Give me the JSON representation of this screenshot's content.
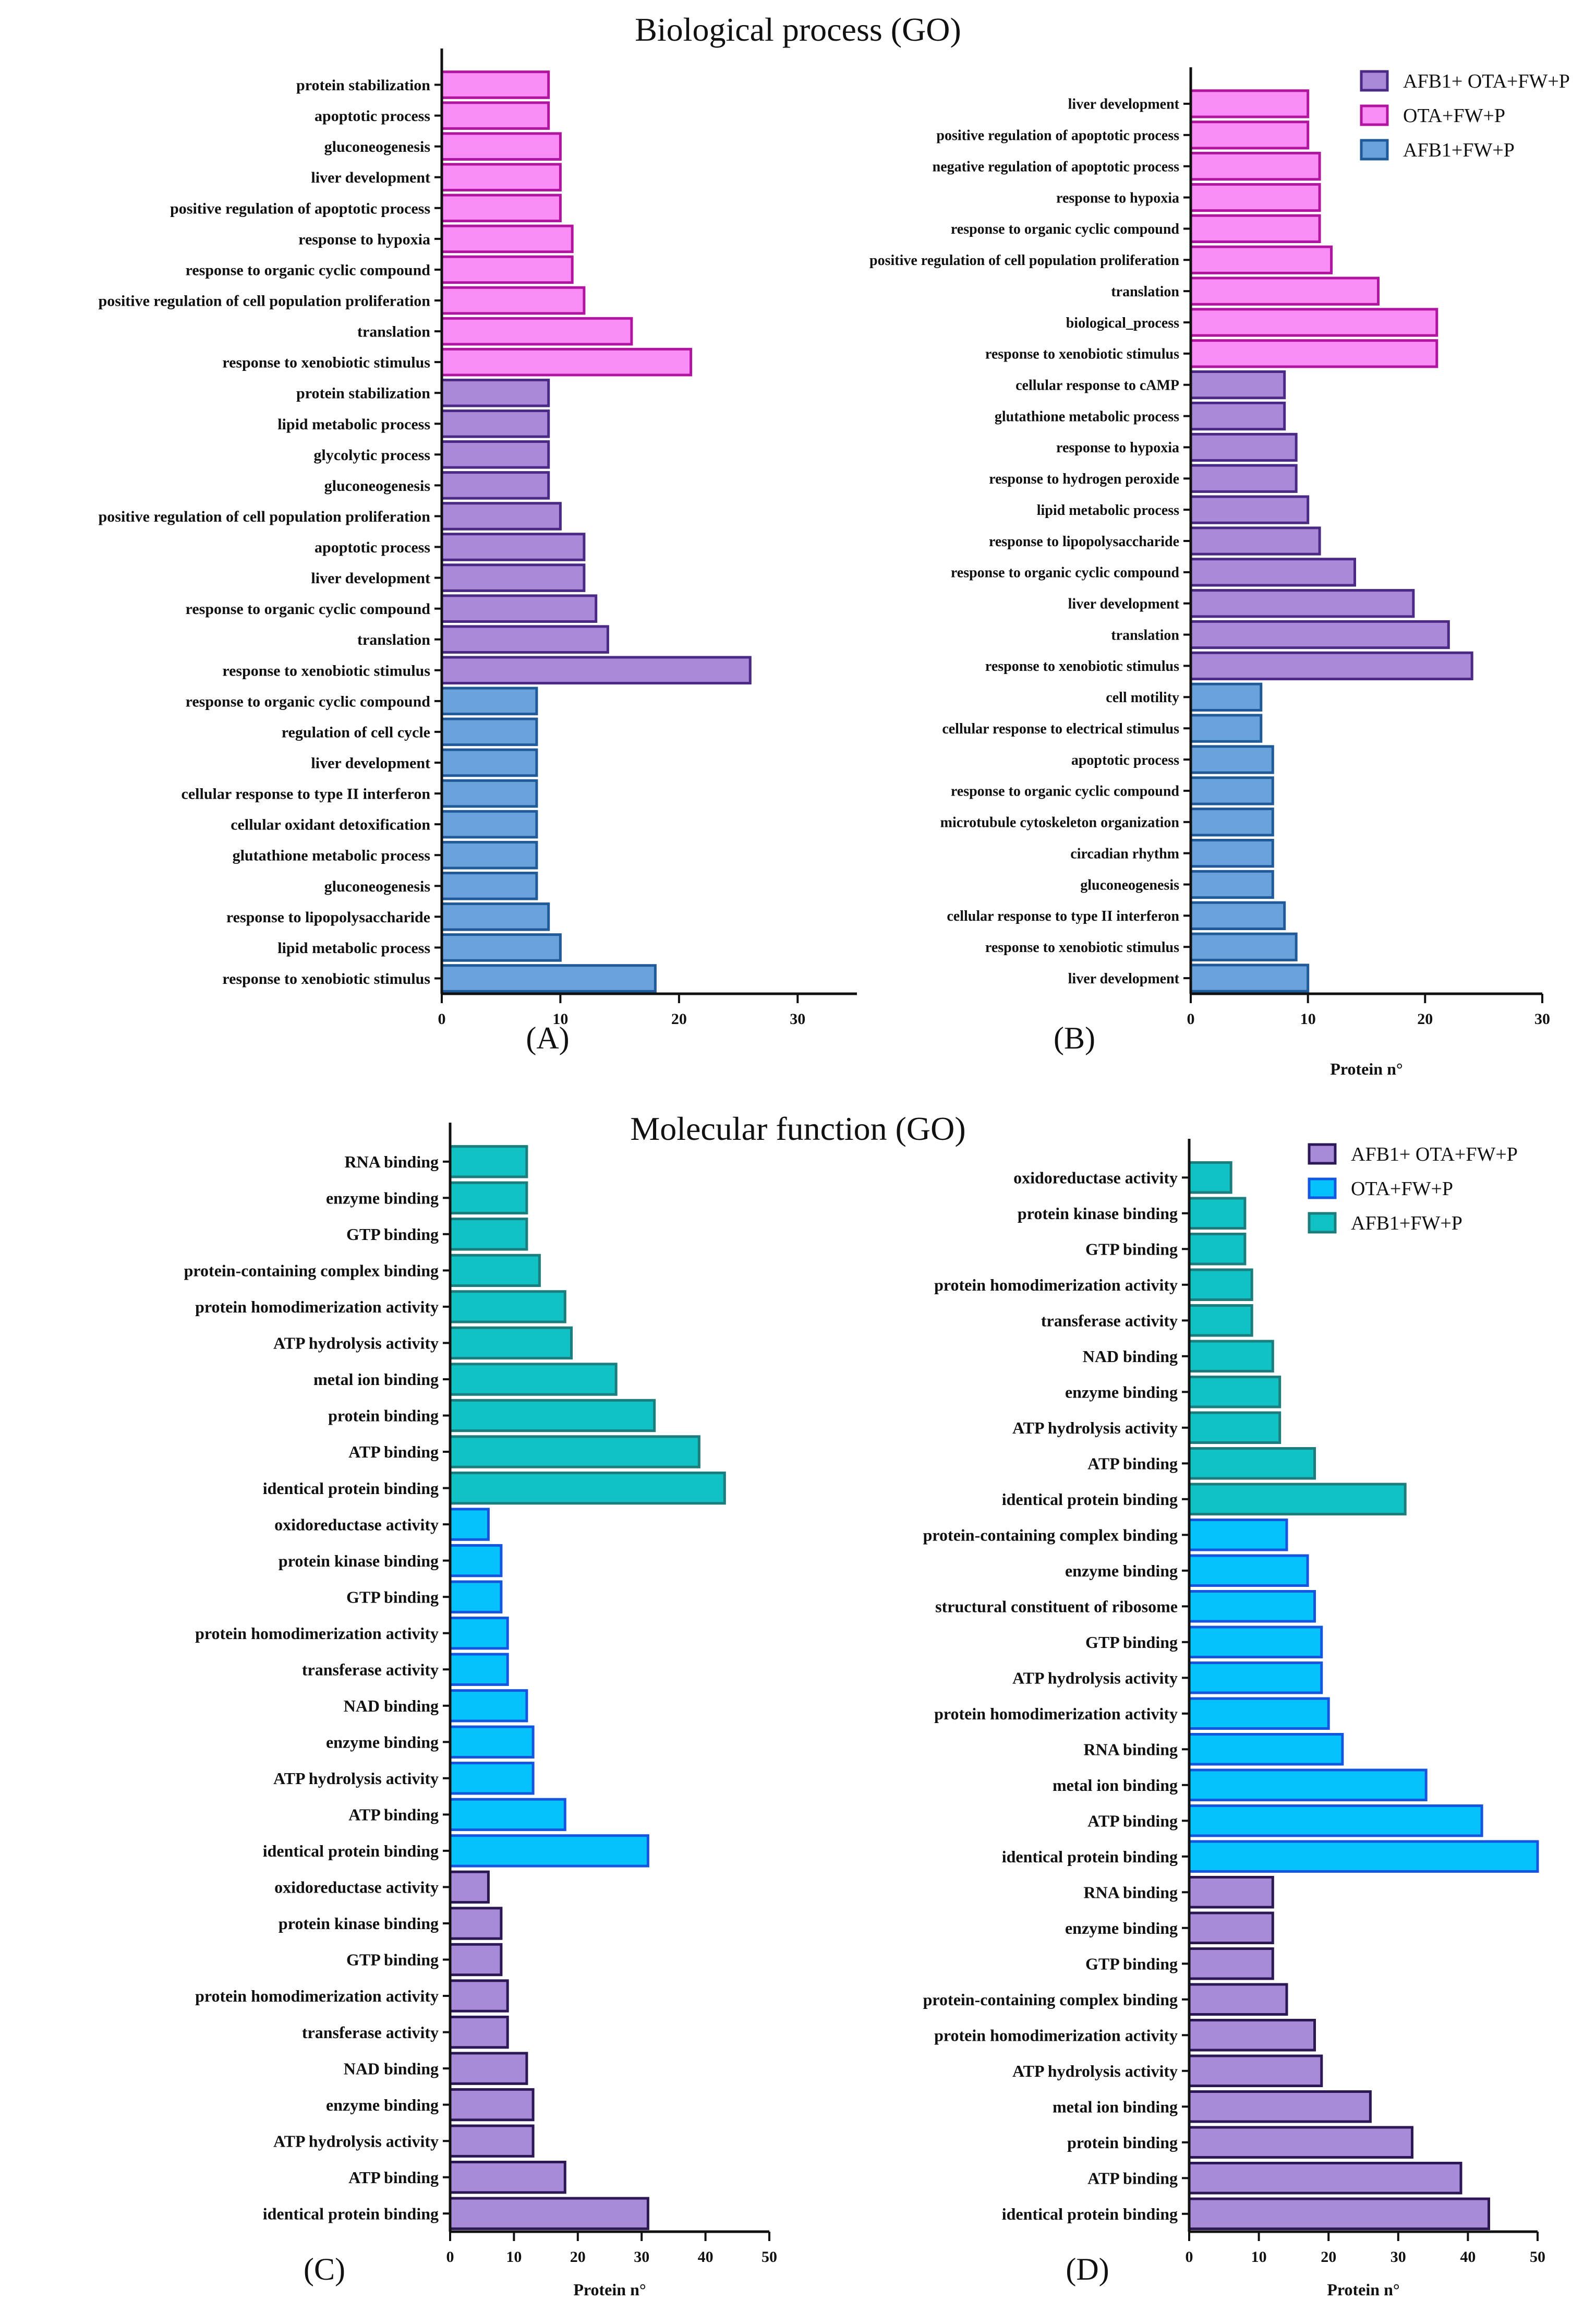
{
  "section_titles": {
    "top": "Biological process (GO)",
    "bottom": "Molecular function (GO)"
  },
  "colors": {
    "purple_fill": "#a98ad9",
    "purple_edge": "#4b2a86",
    "pink_fill": "#fa8cf5",
    "pink_edge": "#b1149e",
    "blue_fill": "#6aa2dc",
    "blue_edge": "#215a99",
    "teal_fill": "#10c2c4",
    "teal_edge": "#1b7d7d",
    "cyan_fill": "#05c3fa",
    "cyan_edge": "#1456e0",
    "violet_fill": "#a88bd8",
    "violet_edge": "#2c1855"
  },
  "chart_data": [
    {
      "id": "A",
      "type": "bar",
      "orientation": "horizontal",
      "panel_label": "(A)",
      "xlabel": "",
      "xlim": [
        0,
        35
      ],
      "xticks": [
        0,
        10,
        20,
        30
      ],
      "groups": [
        {
          "name": "OTA+FW+P",
          "fill": "#fa8cf5",
          "edge": "#b1149e",
          "categories": [
            "protein stabilization",
            "apoptotic process",
            "gluconeogenesis",
            "liver development",
            "positive regulation of apoptotic process",
            "response to hypoxia",
            "response to organic cyclic compound",
            "positive regulation of cell population proliferation",
            "translation",
            "response to xenobiotic stimulus"
          ],
          "values": [
            9,
            9,
            10,
            10,
            10,
            11,
            11,
            12,
            16,
            21
          ]
        },
        {
          "name": "AFB1+ OTA+FW+P",
          "fill": "#a98ad9",
          "edge": "#4b2a86",
          "categories": [
            "protein stabilization",
            "lipid metabolic process",
            "glycolytic process",
            "gluconeogenesis",
            "positive regulation of cell population proliferation",
            "apoptotic process",
            "liver development",
            "response to organic cyclic compound",
            "translation",
            "response to xenobiotic stimulus"
          ],
          "values": [
            9,
            9,
            9,
            9,
            10,
            12,
            12,
            13,
            14,
            26
          ]
        },
        {
          "name": "AFB1+FW+P",
          "fill": "#6aa2dc",
          "edge": "#215a99",
          "categories": [
            "response to organic cyclic compound",
            "regulation of cell cycle",
            "liver development",
            "cellular response to type II interferon",
            "cellular oxidant detoxification",
            "glutathione metabolic process",
            "gluconeogenesis",
            "response to lipopolysaccharide",
            "lipid metabolic process",
            "response to xenobiotic stimulus"
          ],
          "values": [
            8,
            8,
            8,
            8,
            8,
            8,
            8,
            9,
            10,
            18
          ]
        }
      ]
    },
    {
      "id": "B",
      "type": "bar",
      "orientation": "horizontal",
      "panel_label": "(B)",
      "xlabel": "Protein n°",
      "xlim": [
        0,
        30
      ],
      "xticks": [
        0,
        10,
        20,
        30
      ],
      "legend": [
        {
          "label": "AFB1+ OTA+FW+P",
          "fill": "#a98ad9",
          "edge": "#4b2a86"
        },
        {
          "label": "OTA+FW+P",
          "fill": "#fa8cf5",
          "edge": "#b1149e"
        },
        {
          "label": "AFB1+FW+P",
          "fill": "#6aa2dc",
          "edge": "#215a99"
        }
      ],
      "groups": [
        {
          "name": "OTA+FW+P",
          "fill": "#fa8cf5",
          "edge": "#b1149e",
          "categories": [
            "liver development",
            "positive regulation of apoptotic process",
            "negative regulation of apoptotic process",
            "response to hypoxia",
            "response to organic cyclic compound",
            "positive regulation of cell population proliferation",
            "translation",
            "biological_process",
            "response to xenobiotic stimulus"
          ],
          "values": [
            10,
            10,
            11,
            11,
            11,
            12,
            16,
            21,
            21
          ]
        },
        {
          "name": "AFB1+ OTA+FW+P",
          "fill": "#a98ad9",
          "edge": "#4b2a86",
          "categories": [
            "cellular response to cAMP",
            "glutathione metabolic process",
            "response to hypoxia",
            "response to hydrogen peroxide",
            "lipid metabolic process",
            "response to lipopolysaccharide",
            "response to organic cyclic compound",
            "liver development",
            "translation",
            "response to xenobiotic stimulus"
          ],
          "values": [
            8,
            8,
            9,
            9,
            10,
            11,
            14,
            19,
            22,
            24
          ]
        },
        {
          "name": "AFB1+FW+P",
          "fill": "#6aa2dc",
          "edge": "#215a99",
          "categories": [
            "cell motility",
            "cellular response to electrical stimulus",
            "apoptotic process",
            "response to organic cyclic compound",
            "microtubule cytoskeleton organization",
            "circadian rhythm",
            "gluconeogenesis",
            "cellular response to type II interferon",
            "response to xenobiotic stimulus",
            "liver development"
          ],
          "values": [
            6,
            6,
            7,
            7,
            7,
            7,
            7,
            8,
            9,
            10
          ]
        }
      ]
    },
    {
      "id": "C",
      "type": "bar",
      "orientation": "horizontal",
      "panel_label": "(C)",
      "xlabel": "Protein n°",
      "xlim": [
        0,
        50
      ],
      "xticks": [
        0,
        10,
        20,
        30,
        40,
        50
      ],
      "groups": [
        {
          "name": "AFB1+FW+P",
          "fill": "#10c2c4",
          "edge": "#1b7d7d",
          "categories": [
            "RNA binding",
            "enzyme binding",
            "GTP binding",
            "protein-containing complex binding",
            "protein homodimerization activity",
            "ATP hydrolysis activity",
            "metal ion binding",
            "protein binding",
            "ATP binding",
            "identical protein binding"
          ],
          "values": [
            12,
            12,
            12,
            14,
            18,
            19,
            26,
            32,
            39,
            43
          ]
        },
        {
          "name": "OTA+FW+P",
          "fill": "#05c3fa",
          "edge": "#1456e0",
          "categories": [
            "oxidoreductase activity",
            "protein kinase binding",
            "GTP binding",
            "protein homodimerization activity",
            "transferase activity",
            "NAD binding",
            "enzyme binding",
            "ATP hydrolysis activity",
            "ATP binding",
            "identical protein binding"
          ],
          "values": [
            6,
            8,
            8,
            9,
            9,
            12,
            13,
            13,
            18,
            31
          ]
        },
        {
          "name": "AFB1+ OTA+FW+P",
          "fill": "#a88bd8",
          "edge": "#2c1855",
          "categories": [
            "oxidoreductase activity",
            "protein kinase binding",
            "GTP binding",
            "protein homodimerization activity",
            "transferase activity",
            "NAD binding",
            "enzyme binding",
            "ATP hydrolysis activity",
            "ATP binding",
            "identical protein binding"
          ],
          "values": [
            6,
            8,
            8,
            9,
            9,
            12,
            13,
            13,
            18,
            31
          ]
        }
      ]
    },
    {
      "id": "D",
      "type": "bar",
      "orientation": "horizontal",
      "panel_label": "(D)",
      "xlabel": "Protein n°",
      "xlim": [
        0,
        50
      ],
      "xticks": [
        0,
        10,
        20,
        30,
        40,
        50
      ],
      "legend": [
        {
          "label": "AFB1+ OTA+FW+P",
          "fill": "#a88bd8",
          "edge": "#2c1855"
        },
        {
          "label": "OTA+FW+P",
          "fill": "#05c3fa",
          "edge": "#1456e0"
        },
        {
          "label": "AFB1+FW+P",
          "fill": "#10c2c4",
          "edge": "#1b7d7d"
        }
      ],
      "groups": [
        {
          "name": "AFB1+FW+P",
          "fill": "#10c2c4",
          "edge": "#1b7d7d",
          "categories": [
            "oxidoreductase activity",
            "protein kinase binding",
            "GTP binding",
            "protein homodimerization activity",
            "transferase activity",
            "NAD binding",
            "enzyme binding",
            "ATP hydrolysis activity",
            "ATP binding",
            "identical protein binding"
          ],
          "values": [
            6,
            8,
            8,
            9,
            9,
            12,
            13,
            13,
            18,
            31
          ]
        },
        {
          "name": "OTA+FW+P",
          "fill": "#05c3fa",
          "edge": "#1456e0",
          "categories": [
            "protein-containing complex binding",
            "enzyme binding",
            "structural constituent of ribosome",
            "GTP binding",
            "ATP hydrolysis activity",
            "protein homodimerization activity",
            "RNA binding",
            "metal ion binding",
            "ATP binding",
            "identical protein binding"
          ],
          "values": [
            14,
            17,
            18,
            19,
            19,
            20,
            22,
            34,
            42,
            50
          ]
        },
        {
          "name": "AFB1+ OTA+FW+P",
          "fill": "#a88bd8",
          "edge": "#2c1855",
          "categories": [
            "RNA binding",
            "enzyme binding",
            "GTP binding",
            "protein-containing complex binding",
            "protein homodimerization activity",
            "ATP hydrolysis activity",
            "metal ion binding",
            "protein binding",
            "ATP binding",
            "identical protein binding"
          ],
          "values": [
            12,
            12,
            12,
            14,
            18,
            19,
            26,
            32,
            39,
            43
          ]
        }
      ]
    }
  ]
}
